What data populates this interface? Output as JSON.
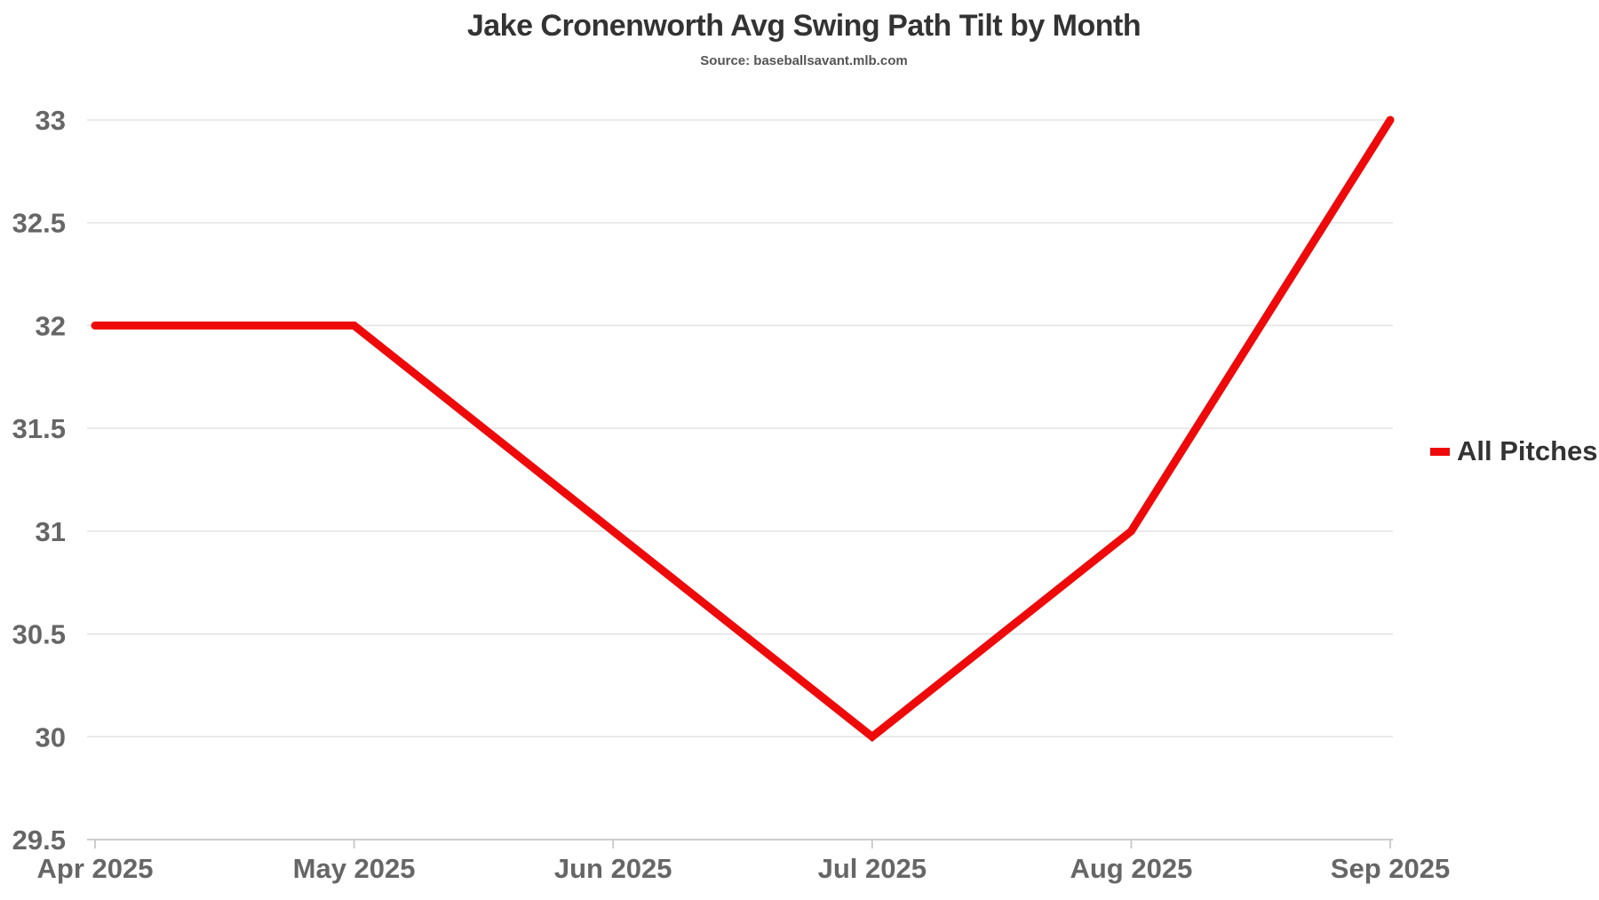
{
  "chart_data": {
    "type": "line",
    "title": "Jake Cronenworth Avg Swing Path Tilt by Month",
    "subtitle": "Source: baseballsavant.mlb.com",
    "categories": [
      "Apr 2025",
      "May 2025",
      "Jun 2025",
      "Jul 2025",
      "Aug 2025",
      "Sep 2025"
    ],
    "series": [
      {
        "name": "All Pitches",
        "values": [
          32,
          32,
          31,
          30,
          31,
          33
        ],
        "color": "#ee0a0a"
      }
    ],
    "y_ticks": [
      "29.5",
      "30",
      "30.5",
      "31",
      "31.5",
      "32",
      "32.5",
      "33"
    ],
    "ylim": [
      29.5,
      33
    ],
    "xlabel": "",
    "ylabel": "",
    "grid": true,
    "legend_position": "right"
  }
}
